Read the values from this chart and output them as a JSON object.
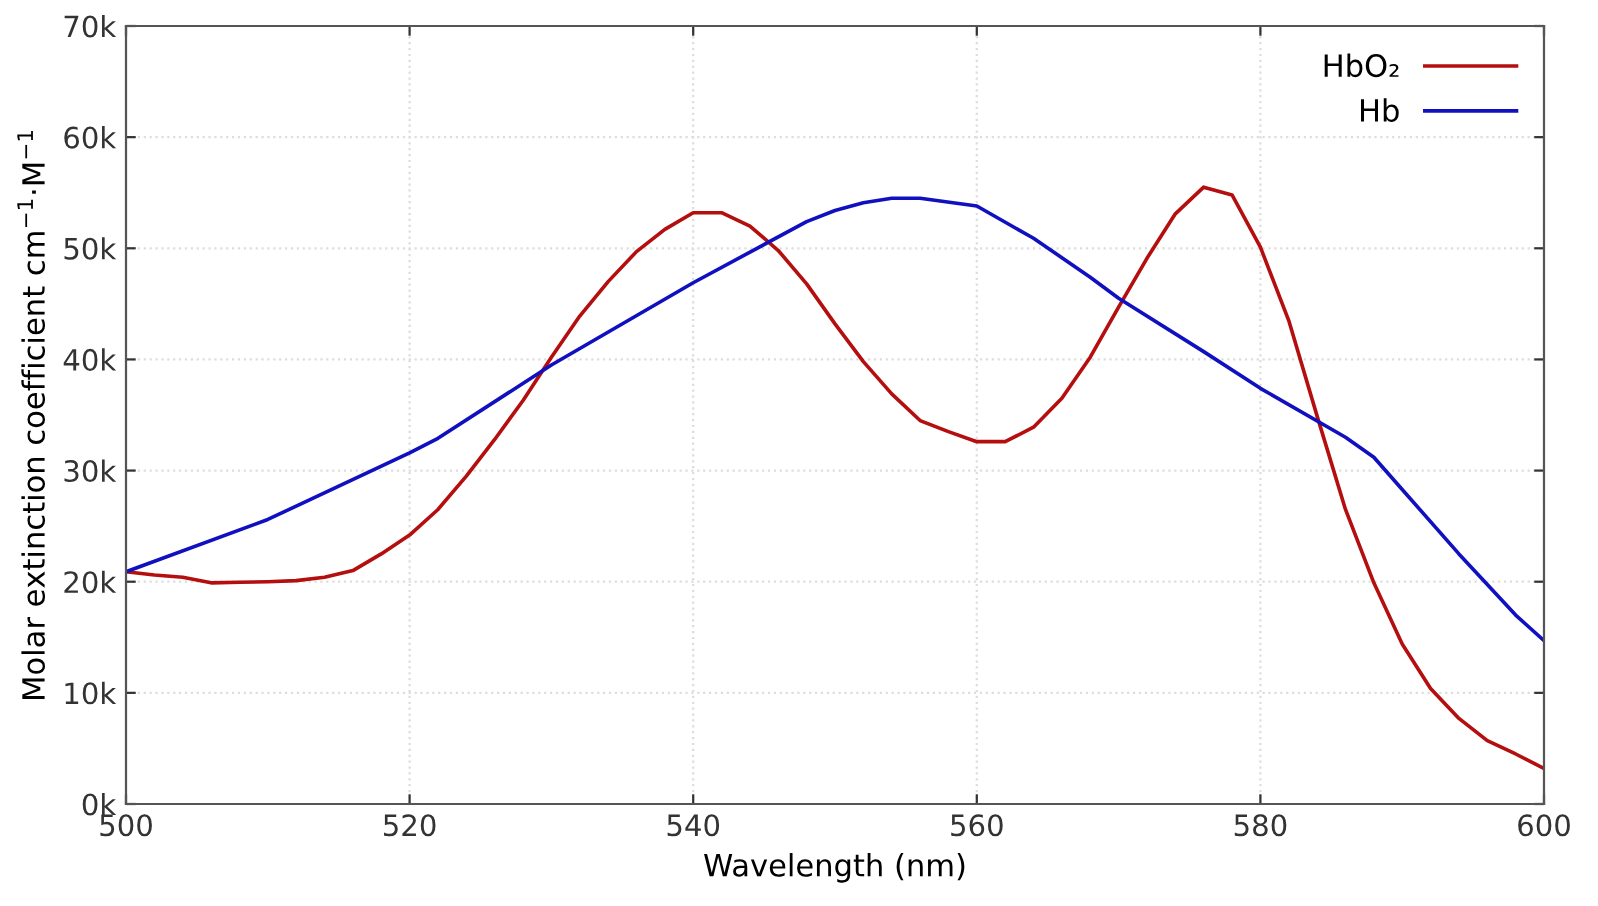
{
  "chart_data": {
    "type": "line",
    "xlabel": "Wavelength (nm)",
    "ylabel": "Molar extinction coefficient cm$^{−1}$·M$^{−1}$",
    "xlim": [
      500,
      600
    ],
    "xticks": [
      500,
      520,
      540,
      560,
      580,
      600
    ],
    "ylim": [
      0,
      70000
    ],
    "yticks": [
      {
        "value": 0,
        "label": "0k"
      },
      {
        "value": 10000,
        "label": "10k"
      },
      {
        "value": 20000,
        "label": "20k"
      },
      {
        "value": 30000,
        "label": "30k"
      },
      {
        "value": 40000,
        "label": "40k"
      },
      {
        "value": 50000,
        "label": "50k"
      },
      {
        "value": 60000,
        "label": "60k"
      },
      {
        "value": 70000,
        "label": "70k"
      }
    ],
    "grid": true,
    "legend": "top right",
    "marker": "none",
    "line_style": "solid",
    "series": [
      {
        "name": "HbO₂",
        "color": "#b40e0e",
        "x": [
          500,
          502,
          504,
          506,
          508,
          510,
          512,
          514,
          516,
          518,
          520,
          522,
          524,
          526,
          528,
          530,
          532,
          534,
          536,
          538,
          540,
          542,
          544,
          546,
          548,
          550,
          552,
          554,
          556,
          558,
          560,
          562,
          564,
          566,
          568,
          570,
          572,
          574,
          576,
          578,
          580,
          582,
          584,
          586,
          588,
          590,
          592,
          594,
          596,
          598,
          600
        ],
        "values": [
          20900,
          20600,
          20400,
          19900,
          19950,
          20000,
          20100,
          20400,
          21000,
          22500,
          24200,
          26500,
          29500,
          32800,
          36300,
          40200,
          43900,
          47000,
          49700,
          51700,
          53200,
          53200,
          52000,
          49800,
          46800,
          43200,
          39800,
          36900,
          34500,
          33500,
          32600,
          32600,
          33900,
          36500,
          40200,
          44700,
          49100,
          53100,
          55500,
          54800,
          50100,
          43500,
          34900,
          26500,
          19900,
          14400,
          10400,
          7700,
          5700,
          4500,
          3200
        ]
      },
      {
        "name": "Hb",
        "color": "#1010c0",
        "x": [
          500,
          510,
          520,
          522,
          530,
          540,
          548,
          550,
          552,
          554,
          556,
          560,
          564,
          568,
          570,
          576,
          580,
          586,
          588,
          590,
          594,
          598,
          600
        ],
        "values": [
          20900,
          25600,
          31600,
          32900,
          39500,
          46900,
          52400,
          53400,
          54100,
          54500,
          54500,
          53800,
          50900,
          47400,
          45500,
          40700,
          37400,
          33000,
          31200,
          28300,
          22500,
          17000,
          14700
        ]
      }
    ]
  }
}
